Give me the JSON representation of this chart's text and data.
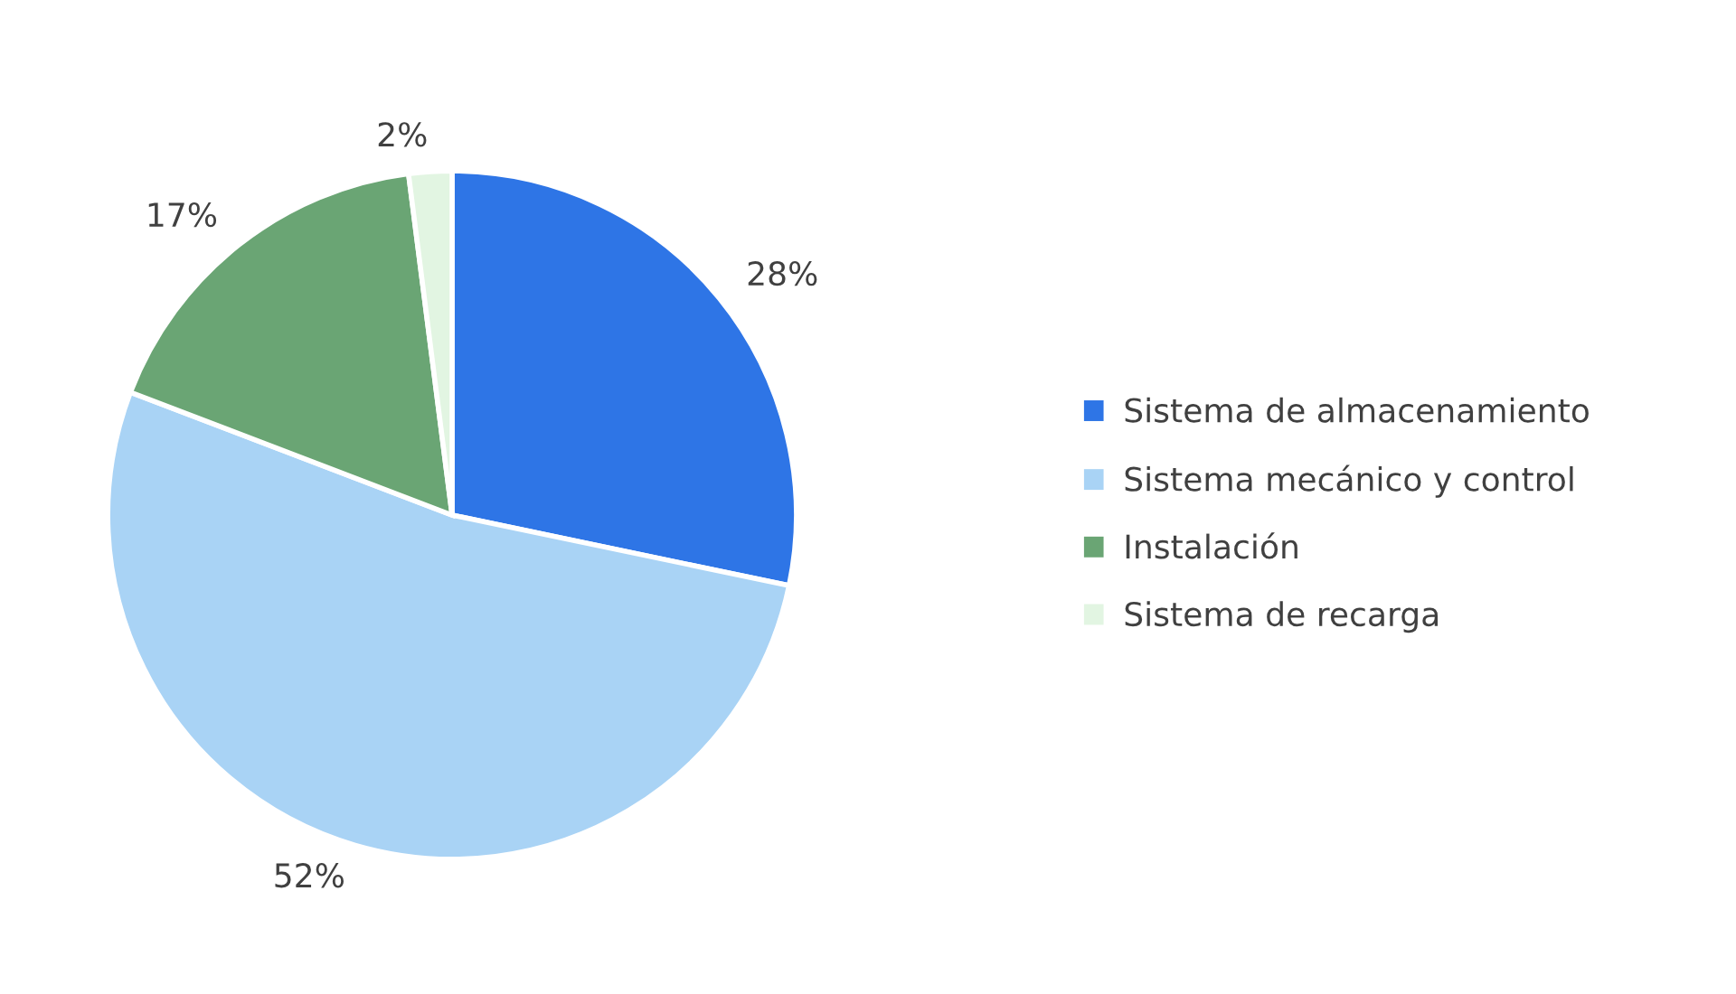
{
  "chart_data": {
    "type": "pie",
    "categories": [
      "Sistema de almacenamiento",
      "Sistema mecánico y control",
      "Instalación",
      "Sistema de recarga"
    ],
    "values": [
      28,
      52,
      17,
      2
    ],
    "colors": [
      "#2e75e6",
      "#a9d3f5",
      "#6aa574",
      "#e2f5e2"
    ],
    "value_labels": [
      "28%",
      "52%",
      "17%",
      "2%"
    ],
    "legend": "right"
  }
}
